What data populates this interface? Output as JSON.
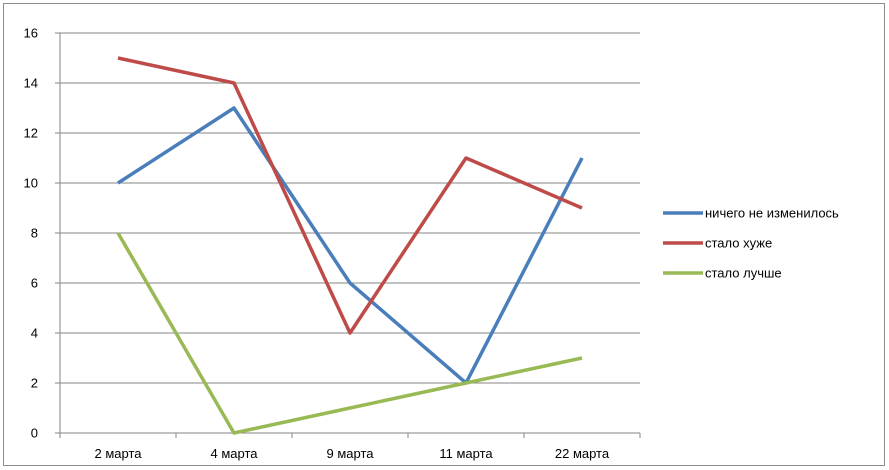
{
  "chart_data": {
    "type": "line",
    "title": "",
    "xlabel": "",
    "ylabel": "",
    "categories": [
      "2 марта",
      "4 марта",
      "9 марта",
      "11 марта",
      "22 марта"
    ],
    "ylim": [
      0,
      16
    ],
    "yticks": [
      0,
      2,
      4,
      6,
      8,
      10,
      12,
      14,
      16
    ],
    "grid": true,
    "legend_position": "right",
    "series": [
      {
        "name": "ничего не изменилось",
        "values": [
          10,
          13,
          6,
          2,
          11
        ],
        "color": "#4a7ebb"
      },
      {
        "name": "стало хуже",
        "values": [
          15,
          14,
          4,
          11,
          9
        ],
        "color": "#be4b48"
      },
      {
        "name": "стало лучше",
        "values": [
          8,
          0,
          1,
          2,
          3
        ],
        "color": "#98b954"
      }
    ]
  }
}
